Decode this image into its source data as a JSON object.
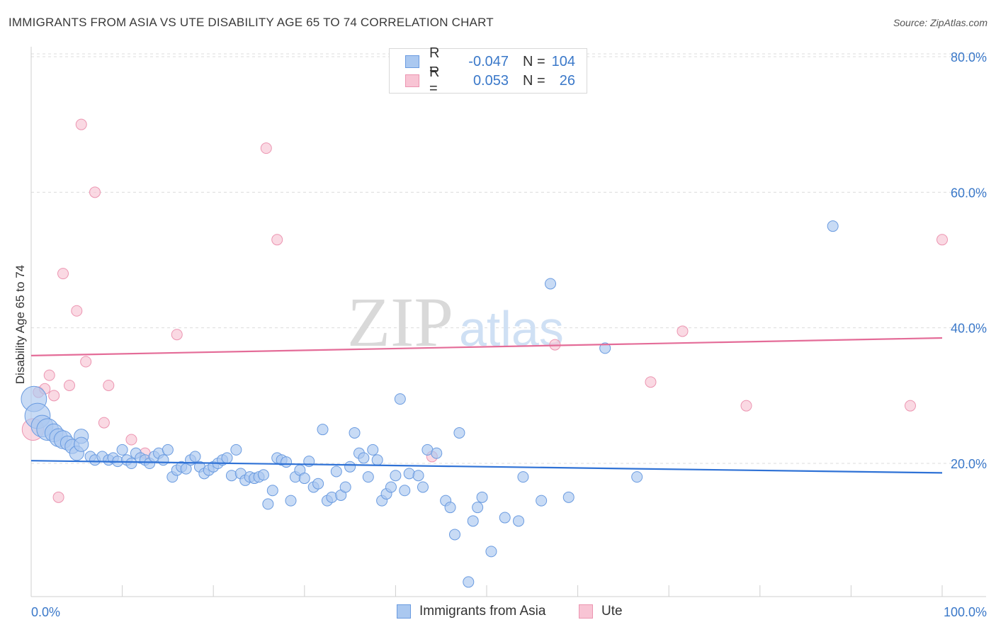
{
  "title": "IMMIGRANTS FROM ASIA VS UTE DISABILITY AGE 65 TO 74 CORRELATION CHART",
  "source": "Source: ZipAtlas.com",
  "watermark": {
    "zip": "ZIP",
    "atlas": "atlas"
  },
  "legend": {
    "rows": [
      {
        "r_label": "R =",
        "r_value": "-0.047",
        "n_label": "N =",
        "n_value": "104"
      },
      {
        "r_label": "R =",
        "r_value": "0.053",
        "n_label": "N =",
        "n_value": "26"
      }
    ]
  },
  "bottom_legend": [
    "Immigrants from Asia",
    "Ute"
  ],
  "colors": {
    "blue_fill": "#aac8f0",
    "blue_stroke": "#6a9be0",
    "blue_line": "#2f72d6",
    "pink_fill": "#f8c4d4",
    "pink_stroke": "#ec95b1",
    "pink_line": "#e46c98",
    "tick_label": "#3a78c9"
  },
  "chart_data": {
    "type": "scatter",
    "title": "IMMIGRANTS FROM ASIA VS UTE DISABILITY AGE 65 TO 74 CORRELATION CHART",
    "xlabel": "",
    "ylabel": "Disability Age 65 to 74",
    "xlim": [
      0,
      100
    ],
    "ylim": [
      0,
      82
    ],
    "x_tick_labels": [
      "0.0%",
      "100.0%"
    ],
    "y_ticks": [
      20,
      40,
      60,
      80
    ],
    "y_tick_labels": [
      "20.0%",
      "40.0%",
      "60.0%",
      "80.0%"
    ],
    "grid": true,
    "legend_position": "top-center",
    "series": [
      {
        "name": "Immigrants from Asia",
        "r": -0.047,
        "n": 104,
        "trend": {
          "x": [
            0,
            100
          ],
          "y": [
            20.4,
            18.6
          ]
        },
        "points": [
          [
            0.3,
            29.5,
            5
          ],
          [
            0.7,
            27.0,
            5
          ],
          [
            1.2,
            25.5,
            4
          ],
          [
            1.8,
            25.0,
            4
          ],
          [
            2.5,
            24.5,
            3
          ],
          [
            3.0,
            23.8,
            3
          ],
          [
            3.5,
            23.5,
            3
          ],
          [
            4.0,
            23.0,
            2
          ],
          [
            4.5,
            22.5,
            2
          ],
          [
            5.5,
            24.0,
            2
          ],
          [
            5.0,
            21.5,
            2
          ],
          [
            5.5,
            22.8,
            2
          ],
          [
            6.5,
            21.0,
            1
          ],
          [
            7.0,
            20.5,
            1
          ],
          [
            7.8,
            21.0,
            1
          ],
          [
            8.5,
            20.5,
            1
          ],
          [
            9.0,
            20.8,
            1
          ],
          [
            9.5,
            20.3,
            1
          ],
          [
            10.0,
            22.0,
            1
          ],
          [
            10.5,
            20.5,
            1
          ],
          [
            11.0,
            20.0,
            1
          ],
          [
            11.5,
            21.5,
            1
          ],
          [
            12.0,
            20.8,
            1
          ],
          [
            12.5,
            20.5,
            1
          ],
          [
            13.0,
            20.0,
            1
          ],
          [
            13.5,
            21.0,
            1
          ],
          [
            14.0,
            21.5,
            1
          ],
          [
            14.5,
            20.5,
            1
          ],
          [
            15.0,
            22.0,
            1
          ],
          [
            15.5,
            18.0,
            1
          ],
          [
            16.0,
            19.0,
            1
          ],
          [
            16.5,
            19.5,
            1
          ],
          [
            17.0,
            19.2,
            1
          ],
          [
            17.5,
            20.5,
            1
          ],
          [
            18.0,
            21.0,
            1
          ],
          [
            18.5,
            19.5,
            1
          ],
          [
            19.0,
            18.5,
            1
          ],
          [
            19.5,
            19.0,
            1
          ],
          [
            20.0,
            19.5,
            1
          ],
          [
            20.5,
            20.0,
            1
          ],
          [
            21.0,
            20.5,
            1
          ],
          [
            21.5,
            20.8,
            1
          ],
          [
            22.0,
            18.2,
            1
          ],
          [
            22.5,
            22.0,
            1
          ],
          [
            23.0,
            18.5,
            1
          ],
          [
            23.5,
            17.5,
            1
          ],
          [
            24.0,
            18.0,
            1
          ],
          [
            24.5,
            17.8,
            1
          ],
          [
            25.0,
            18.0,
            1
          ],
          [
            25.5,
            18.3,
            1
          ],
          [
            26.0,
            14.0,
            1
          ],
          [
            26.5,
            16.0,
            1
          ],
          [
            27.0,
            20.8,
            1
          ],
          [
            27.5,
            20.5,
            1
          ],
          [
            28.0,
            20.2,
            1
          ],
          [
            28.5,
            14.5,
            1
          ],
          [
            29.0,
            18.0,
            1
          ],
          [
            29.5,
            19.0,
            1
          ],
          [
            30.0,
            17.8,
            1
          ],
          [
            30.5,
            20.3,
            1
          ],
          [
            31.0,
            16.5,
            1
          ],
          [
            31.5,
            17.0,
            1
          ],
          [
            32.0,
            25.0,
            1
          ],
          [
            32.5,
            14.5,
            1
          ],
          [
            33.0,
            15.0,
            1
          ],
          [
            33.5,
            18.8,
            1
          ],
          [
            34.0,
            15.3,
            1
          ],
          [
            34.5,
            16.5,
            1
          ],
          [
            35.0,
            19.5,
            1
          ],
          [
            35.5,
            24.5,
            1
          ],
          [
            36.0,
            21.5,
            1
          ],
          [
            36.5,
            20.8,
            1
          ],
          [
            37.0,
            18.0,
            1
          ],
          [
            37.5,
            22.0,
            1
          ],
          [
            38.0,
            20.5,
            1
          ],
          [
            38.5,
            14.5,
            1
          ],
          [
            39.0,
            15.5,
            1
          ],
          [
            39.5,
            16.5,
            1
          ],
          [
            40.0,
            18.2,
            1
          ],
          [
            40.5,
            29.5,
            1
          ],
          [
            41.0,
            16.0,
            1
          ],
          [
            41.5,
            18.5,
            1
          ],
          [
            42.5,
            18.2,
            1
          ],
          [
            43.0,
            16.5,
            1
          ],
          [
            43.5,
            22.0,
            1
          ],
          [
            44.5,
            21.5,
            1
          ],
          [
            45.5,
            14.5,
            1
          ],
          [
            46.0,
            13.5,
            1
          ],
          [
            46.5,
            9.5,
            1
          ],
          [
            47.0,
            24.5,
            1
          ],
          [
            48.0,
            2.5,
            1
          ],
          [
            48.5,
            11.5,
            1
          ],
          [
            49.0,
            13.5,
            1
          ],
          [
            49.5,
            15.0,
            1
          ],
          [
            50.5,
            7.0,
            1
          ],
          [
            52.0,
            12.0,
            1
          ],
          [
            53.5,
            11.5,
            1
          ],
          [
            54.0,
            18.0,
            1
          ],
          [
            56.0,
            14.5,
            1
          ],
          [
            57.0,
            46.5,
            1
          ],
          [
            59.0,
            15.0,
            1
          ],
          [
            63.0,
            37.0,
            1
          ],
          [
            66.5,
            18.0,
            1
          ],
          [
            88.0,
            55.0,
            1
          ]
        ]
      },
      {
        "name": "Ute",
        "r": 0.053,
        "n": 26,
        "trend": {
          "x": [
            0,
            100
          ],
          "y": [
            35.9,
            38.5
          ]
        },
        "points": [
          [
            0.2,
            25.0,
            4
          ],
          [
            0.8,
            30.5,
            1
          ],
          [
            1.5,
            31.0,
            1
          ],
          [
            2.0,
            33.0,
            1
          ],
          [
            2.5,
            30.0,
            1
          ],
          [
            3.0,
            15.0,
            1
          ],
          [
            3.5,
            48.0,
            1
          ],
          [
            4.2,
            31.5,
            1
          ],
          [
            5.0,
            42.5,
            1
          ],
          [
            5.5,
            70.0,
            1
          ],
          [
            6.0,
            35.0,
            1
          ],
          [
            7.0,
            60.0,
            1
          ],
          [
            8.0,
            26.0,
            1
          ],
          [
            8.5,
            31.5,
            1
          ],
          [
            11.0,
            23.5,
            1
          ],
          [
            12.5,
            21.5,
            1
          ],
          [
            16.0,
            39.0,
            1
          ],
          [
            25.8,
            66.5,
            1
          ],
          [
            27.0,
            53.0,
            1
          ],
          [
            44.0,
            21.0,
            1
          ],
          [
            57.5,
            37.5,
            1
          ],
          [
            68.0,
            32.0,
            1
          ],
          [
            71.5,
            39.5,
            1
          ],
          [
            78.5,
            28.5,
            1
          ],
          [
            96.5,
            28.5,
            1
          ],
          [
            100.0,
            53.0,
            1
          ]
        ]
      }
    ]
  }
}
